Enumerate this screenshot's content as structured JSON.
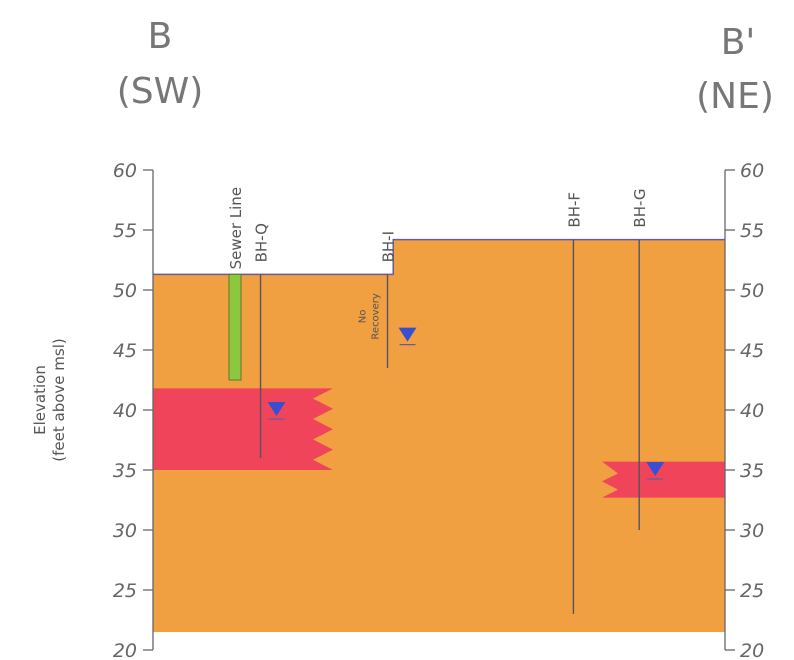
{
  "section": {
    "left_letter": "B",
    "left_direction": "(SW)",
    "right_letter": "B'",
    "right_direction": "(NE)"
  },
  "axis": {
    "title_line1": "Elevation",
    "title_line2": "(feet above msl)",
    "min": 20,
    "max": 60,
    "ticks": [
      "60",
      "55",
      "50",
      "45",
      "40",
      "35",
      "30",
      "25",
      "20"
    ]
  },
  "ground_surface": {
    "left_elevation": 51.3,
    "right_elevation": 54.2,
    "step_distance": 0.42
  },
  "sewer_line": {
    "label": "Sewer Line",
    "top_elevation": 51.3,
    "bottom_elevation": 42.5,
    "color": "#8dc63f"
  },
  "boreholes": [
    {
      "id": "BH-Q",
      "label": "BH-Q",
      "distance": 0.188,
      "top": 51.3,
      "bottom": 36.0,
      "water_level": 40.0
    },
    {
      "id": "BH-I",
      "label": "BH-I",
      "distance": 0.41,
      "top": 51.3,
      "bottom": 43.5,
      "water_level": 46.2,
      "note_line1": "No",
      "note_line2": "Recovery"
    },
    {
      "id": "BH-F",
      "label": "BH-F",
      "distance": 0.735,
      "top": 54.2,
      "bottom": 23.0
    },
    {
      "id": "BH-G",
      "label": "BH-G",
      "distance": 0.85,
      "top": 54.2,
      "bottom": 30.0,
      "water_level": 35.0
    }
  ],
  "units": [
    {
      "name": "fill",
      "color": "#f0a040"
    },
    {
      "name": "saturated-lens-sw",
      "top": 41.8,
      "bottom": 35.0,
      "color": "#f0445a"
    },
    {
      "name": "saturated-lens-ne",
      "top": 35.7,
      "bottom": 32.7,
      "color": "#f0445a"
    }
  ],
  "water_symbol_color": "#3a4fd0"
}
